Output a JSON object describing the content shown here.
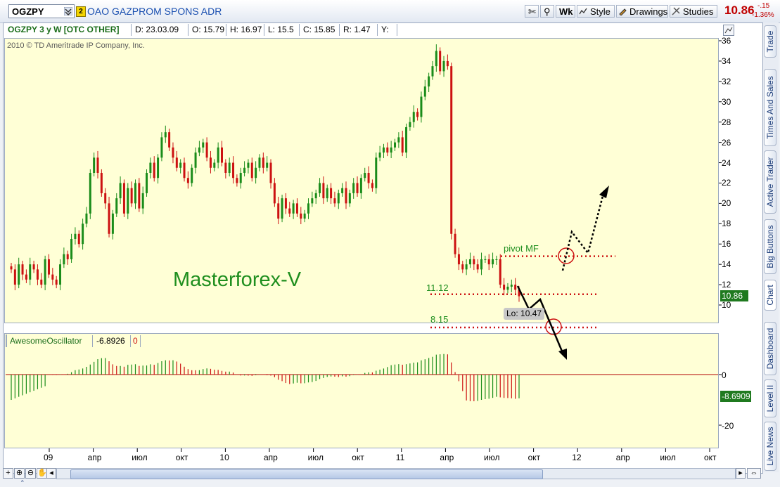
{
  "toolbar": {
    "symbol": "OGZPY",
    "link_badge": "2",
    "company": "OAO GAZPROM SPONS ADR",
    "wk_label": "Wk",
    "style_label": "Style",
    "drawings_label": "Drawings",
    "studies_label": "Studies",
    "last_price": "10.86",
    "net_change": "-.15",
    "pct_change": "-1.36%"
  },
  "info": {
    "title": "OGZPY 3 y W [OTC OTHER]",
    "date": "D: 23.03.09",
    "open": "O: 15.79",
    "high": "H: 16.97",
    "low": "L: 15.5",
    "close": "C: 15.85",
    "range": "R: 1.47",
    "y": "Y:"
  },
  "chart_meta": {
    "copyright": "2010 © TD Ameritrade IP Company, Inc.",
    "watermark": "Masterforex-V",
    "pivot_label": "pivot MF",
    "level_1112": "11.12",
    "level_815": "8.15",
    "low_tag": "Lo: 10.47",
    "price_tag": "10.86",
    "osc_name": "AwesomeOscillator",
    "osc_value": "-6.8926",
    "osc_zero": "0",
    "osc_tag": "-8.6909",
    "osc_axis": [
      "0",
      "-20"
    ],
    "price_axis": [
      "36",
      "34",
      "32",
      "30",
      "28",
      "26",
      "24",
      "22",
      "20",
      "18",
      "16",
      "14",
      "12",
      "10"
    ],
    "time_axis": [
      "09",
      "апр",
      "июл",
      "окт",
      "10",
      "апр",
      "июл",
      "окт",
      "11",
      "апр",
      "июл",
      "окт",
      "12",
      "апр",
      "июл",
      "окт"
    ],
    "colors": {
      "up": "#1a8c1a",
      "down": "#cc1111",
      "pane": "#ffffd6",
      "dotted": "#cc1111"
    }
  },
  "side_tabs": [
    "Trade",
    "Times And Sales",
    "Active Trader",
    "Big Buttons",
    "Chart",
    "Dashboard",
    "Level II",
    "Live News"
  ],
  "chart_data": {
    "type": "candlestick",
    "title": "OGZPY 3 y W [OTC OTHER]",
    "x_ticks": [
      "09",
      "апр",
      "июл",
      "окт",
      "10",
      "апр",
      "июл",
      "окт",
      "11",
      "апр",
      "июл",
      "окт",
      "12",
      "апр",
      "июл",
      "окт"
    ],
    "ylim": [
      9.5,
      36.5
    ],
    "close_path": [
      13.5,
      12.0,
      14.0,
      13.0,
      12.5,
      14.0,
      13.5,
      12.5,
      12.0,
      14.5,
      13.0,
      12.5,
      12.0,
      14.0,
      15.0,
      14.5,
      16.5,
      17.0,
      16.0,
      18.0,
      19.0,
      23.0,
      24.5,
      23.0,
      21.0,
      20.0,
      17.0,
      19.0,
      20.5,
      22.0,
      19.0,
      21.5,
      20.0,
      22.0,
      19.5,
      21.0,
      23.0,
      24.0,
      22.5,
      24.5,
      26.5,
      27.0,
      25.5,
      24.5,
      23.5,
      24.0,
      22.5,
      22.0,
      23.5,
      25.0,
      25.5,
      26.0,
      24.5,
      23.5,
      24.0,
      25.5,
      24.0,
      23.0,
      24.0,
      22.5,
      22.0,
      23.0,
      23.5,
      24.0,
      22.5,
      23.5,
      24.5,
      23.5,
      24.0,
      22.0,
      20.0,
      18.5,
      20.5,
      19.5,
      19.0,
      20.0,
      19.0,
      18.5,
      19.0,
      20.0,
      20.5,
      21.0,
      22.0,
      20.5,
      21.5,
      20.5,
      20.0,
      21.0,
      21.5,
      20.0,
      21.0,
      22.0,
      21.0,
      22.5,
      23.0,
      22.0,
      21.5,
      24.5,
      25.0,
      25.5,
      25.0,
      25.5,
      26.0,
      26.5,
      25.0,
      27.5,
      28.0,
      29.0,
      28.5,
      30.5,
      31.5,
      32.5,
      33.5,
      35.0,
      33.0,
      34.0,
      33.5,
      17.0,
      15.0,
      14.0,
      13.5,
      14.0,
      14.5,
      14.0,
      13.5,
      14.5,
      14.5,
      14.0,
      14.5,
      14.5,
      12.0,
      11.5,
      11.8,
      12.0,
      11.5,
      10.86
    ],
    "series": [
      {
        "name": "AwesomeOscillator",
        "last": -8.6909
      }
    ],
    "annotations": {
      "pivot": 14.8,
      "level1": 11.12,
      "level2": 8.15,
      "low": 10.47
    }
  }
}
